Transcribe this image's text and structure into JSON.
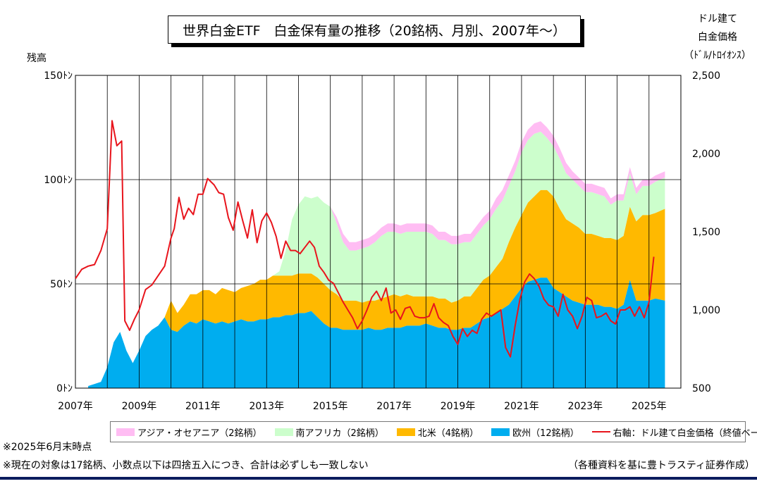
{
  "chart_data": {
    "type": "area",
    "title": "世界白金ETF　白金保有量の推移（20銘柄、月別、2007年～）",
    "ylabel_left": "残高",
    "ylabel_right": [
      "ドル建て",
      "白金価格",
      "（ﾄﾞﾙ/ﾄﾛｲｵﾝｽ）"
    ],
    "left_ticks": [
      "150ﾄﾝ",
      "100ﾄﾝ",
      "50ﾄﾝ",
      "0ﾄﾝ"
    ],
    "right_ticks": [
      "2,500",
      "2,000",
      "1,500",
      "1,000",
      "500"
    ],
    "x_ticks": [
      "2007年",
      "2009年",
      "2011年",
      "2013年",
      "2015年",
      "2017年",
      "2019年",
      "2021年",
      "2023年",
      "2025年"
    ],
    "ylim_left": [
      0,
      150
    ],
    "ylim_right": [
      500,
      2500
    ],
    "xlim": [
      2007.0,
      2026.0
    ],
    "stack_x": [
      2007.4,
      2007.6,
      2007.8,
      2008.0,
      2008.2,
      2008.4,
      2008.6,
      2008.8,
      2009.0,
      2009.2,
      2009.4,
      2009.6,
      2009.8,
      2010.0,
      2010.2,
      2010.4,
      2010.6,
      2010.8,
      2011.0,
      2011.2,
      2011.4,
      2011.6,
      2011.8,
      2012.0,
      2012.2,
      2012.4,
      2012.6,
      2012.8,
      2013.0,
      2013.2,
      2013.4,
      2013.6,
      2013.8,
      2014.0,
      2014.2,
      2014.4,
      2014.6,
      2014.8,
      2015.0,
      2015.2,
      2015.4,
      2015.6,
      2015.8,
      2016.0,
      2016.2,
      2016.4,
      2016.6,
      2016.8,
      2017.0,
      2017.2,
      2017.4,
      2017.6,
      2017.8,
      2018.0,
      2018.2,
      2018.4,
      2018.6,
      2018.8,
      2019.0,
      2019.2,
      2019.4,
      2019.6,
      2019.8,
      2020.0,
      2020.2,
      2020.4,
      2020.6,
      2020.8,
      2021.0,
      2021.2,
      2021.4,
      2021.6,
      2021.8,
      2022.0,
      2022.2,
      2022.4,
      2022.6,
      2022.8,
      2023.0,
      2023.2,
      2023.4,
      2023.6,
      2023.8,
      2024.0,
      2024.2,
      2024.4,
      2024.6,
      2024.8,
      2025.0,
      2025.2,
      2025.5
    ],
    "series": [
      {
        "name": "欧州（12銘柄）",
        "color": "#00adef",
        "values": [
          1,
          2,
          3,
          10,
          22,
          27,
          18,
          12,
          18,
          25,
          28,
          30,
          34,
          28,
          27,
          30,
          32,
          31,
          33,
          32,
          31,
          32,
          31,
          32,
          33,
          32,
          32,
          33,
          33,
          34,
          34,
          35,
          35,
          36,
          36,
          37,
          34,
          31,
          29,
          29,
          28,
          28,
          28,
          28,
          29,
          28,
          28,
          29,
          29,
          29,
          30,
          30,
          30,
          31,
          30,
          29,
          29,
          28,
          28,
          29,
          29,
          31,
          33,
          34,
          36,
          38,
          40,
          44,
          48,
          51,
          52,
          53,
          53,
          48,
          46,
          44,
          42,
          41,
          40,
          40,
          40,
          39,
          39,
          38,
          40,
          52,
          42,
          42,
          42,
          43,
          42
        ]
      },
      {
        "name": "北米（4銘柄）",
        "color": "#ffb900",
        "values": [
          0,
          0,
          0,
          0,
          0,
          0,
          0,
          0,
          0,
          0,
          0,
          0,
          0,
          14,
          9,
          10,
          13,
          14,
          14,
          15,
          14,
          16,
          16,
          14,
          15,
          17,
          18,
          19,
          19,
          20,
          20,
          19,
          19,
          19,
          19,
          18,
          19,
          19,
          18,
          16,
          14,
          14,
          14,
          13,
          13,
          14,
          15,
          15,
          16,
          15,
          15,
          14,
          14,
          13,
          14,
          14,
          14,
          13,
          14,
          15,
          15,
          17,
          19,
          20,
          22,
          24,
          30,
          33,
          35,
          38,
          40,
          42,
          42,
          44,
          40,
          37,
          37,
          36,
          34,
          34,
          33,
          33,
          33,
          33,
          33,
          35,
          38,
          41,
          41,
          41,
          44
        ]
      },
      {
        "name": "南アフリカ（2銘柄）",
        "color": "#ccfecc",
        "values": [
          0,
          0,
          0,
          0,
          0,
          0,
          0,
          0,
          0,
          0,
          0,
          0,
          0,
          0,
          0,
          0,
          0,
          0,
          0,
          0,
          0,
          0,
          0,
          0,
          0,
          0,
          0,
          0,
          0,
          0,
          2,
          12,
          27,
          33,
          37,
          36,
          39,
          39,
          40,
          34,
          28,
          24,
          24,
          26,
          26,
          28,
          30,
          31,
          30,
          30,
          30,
          31,
          31,
          31,
          30,
          28,
          28,
          28,
          27,
          26,
          26,
          26,
          26,
          27,
          28,
          28,
          27,
          27,
          30,
          30,
          30,
          28,
          25,
          24,
          24,
          22,
          21,
          20,
          20,
          20,
          20,
          20,
          16,
          19,
          17,
          16,
          13,
          14,
          14,
          15,
          15
        ]
      },
      {
        "name": "アジア・オセアニア（2銘柄）",
        "color": "#ffbdf3",
        "values": [
          0,
          0,
          0,
          0,
          0,
          0,
          0,
          0,
          0,
          0,
          0,
          0,
          0,
          0,
          0,
          0,
          0,
          0,
          0,
          0,
          0,
          0,
          0,
          0,
          0,
          0,
          0,
          0,
          0,
          0,
          0,
          0,
          0,
          0,
          0,
          0,
          0,
          0,
          0,
          3,
          4,
          4,
          4,
          4,
          4,
          4,
          4,
          4,
          4,
          4,
          4,
          4,
          4,
          4,
          4,
          4,
          4,
          4,
          4,
          4,
          4,
          4,
          4,
          4,
          5,
          5,
          5,
          5,
          5,
          5,
          5,
          5,
          5,
          5,
          5,
          5,
          4,
          4,
          4,
          4,
          4,
          4,
          3,
          3,
          3,
          3,
          3,
          3,
          3,
          3,
          3
        ]
      }
    ],
    "price_name": "右軸：ドル建て白金価格（終値ベース）",
    "price_color": "#e8141c",
    "price_x": [
      2007.0,
      2007.2,
      2007.4,
      2007.6,
      2007.8,
      2008.0,
      2008.15,
      2008.3,
      2008.45,
      2008.55,
      2008.7,
      2008.85,
      2009.0,
      2009.2,
      2009.4,
      2009.6,
      2009.8,
      2010.0,
      2010.1,
      2010.25,
      2010.4,
      2010.55,
      2010.7,
      2010.85,
      2011.0,
      2011.15,
      2011.35,
      2011.5,
      2011.65,
      2011.8,
      2011.95,
      2012.1,
      2012.25,
      2012.4,
      2012.55,
      2012.7,
      2012.85,
      2013.0,
      2013.15,
      2013.3,
      2013.45,
      2013.6,
      2013.75,
      2013.9,
      2014.05,
      2014.2,
      2014.35,
      2014.5,
      2014.65,
      2014.8,
      2014.95,
      2015.1,
      2015.25,
      2015.4,
      2015.55,
      2015.7,
      2015.85,
      2016.0,
      2016.15,
      2016.3,
      2016.45,
      2016.6,
      2016.75,
      2016.9,
      2017.05,
      2017.2,
      2017.35,
      2017.5,
      2017.65,
      2017.8,
      2017.95,
      2018.1,
      2018.25,
      2018.4,
      2018.55,
      2018.7,
      2018.85,
      2019.0,
      2019.15,
      2019.3,
      2019.45,
      2019.6,
      2019.75,
      2019.9,
      2020.05,
      2020.2,
      2020.35,
      2020.5,
      2020.65,
      2020.8,
      2020.95,
      2021.1,
      2021.25,
      2021.4,
      2021.55,
      2021.7,
      2021.85,
      2022.0,
      2022.15,
      2022.3,
      2022.45,
      2022.6,
      2022.75,
      2022.9,
      2023.05,
      2023.2,
      2023.35,
      2023.5,
      2023.65,
      2023.8,
      2023.95,
      2024.1,
      2024.25,
      2024.4,
      2024.55,
      2024.7,
      2024.85,
      2025.0,
      2025.15,
      2025.3,
      2025.45,
      2025.55
    ],
    "price_values": [
      1200,
      1260,
      1280,
      1290,
      1380,
      1520,
      2210,
      2050,
      2080,
      930,
      870,
      940,
      1000,
      1130,
      1160,
      1220,
      1280,
      1460,
      1520,
      1720,
      1580,
      1650,
      1610,
      1740,
      1740,
      1840,
      1800,
      1750,
      1740,
      1590,
      1510,
      1690,
      1570,
      1460,
      1640,
      1430,
      1570,
      1620,
      1560,
      1470,
      1330,
      1440,
      1380,
      1380,
      1360,
      1400,
      1440,
      1400,
      1280,
      1240,
      1190,
      1170,
      1110,
      1050,
      1000,
      950,
      880,
      930,
      1000,
      1080,
      1120,
      1060,
      1140,
      980,
      1000,
      940,
      1010,
      1020,
      960,
      950,
      950,
      960,
      1040,
      950,
      920,
      900,
      830,
      780,
      880,
      830,
      870,
      850,
      940,
      980,
      960,
      980,
      1000,
      760,
      700,
      900,
      1070,
      1180,
      1230,
      1200,
      1150,
      1070,
      1030,
      1020,
      960,
      1100,
      1000,
      960,
      880,
      960,
      1080,
      1060,
      950,
      960,
      980,
      930,
      910,
      1000,
      1000,
      1020,
      960,
      1020,
      950,
      1050,
      1340
    ]
  },
  "notes": {
    "note1": "※2025年6月末時点",
    "note2": "※現在の対象は17銘柄、小数点以下は四捨五入につき、合計は必ずしも一致しない",
    "source": "（各種資料を基に豊トラスティ証券作成）"
  }
}
